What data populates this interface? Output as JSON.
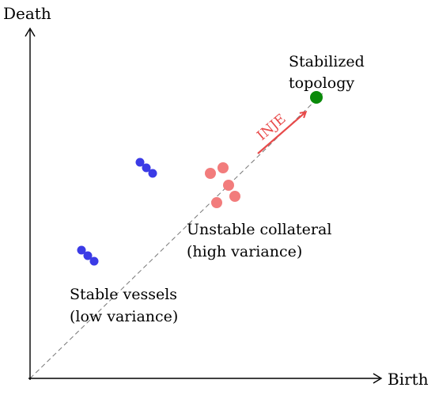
{
  "axes": {
    "x_label": "Birth",
    "y_label": "Death"
  },
  "annotations": {
    "stable": {
      "line1": "Stable vessels",
      "line2": "(low variance)"
    },
    "unstable": {
      "line1": "Unstable collateral",
      "line2": "(high variance)"
    },
    "stabilized": {
      "line1": "Stabilized",
      "line2": "topology"
    },
    "inje": "INJE"
  },
  "colors": {
    "stable_points": "#3b3be6",
    "unstable_points": "#f27c7c",
    "stabilized_point": "#0a8a0a",
    "inje_arrow": "#e84a4a",
    "diagonal": "#777777",
    "axis": "#000000"
  }
}
